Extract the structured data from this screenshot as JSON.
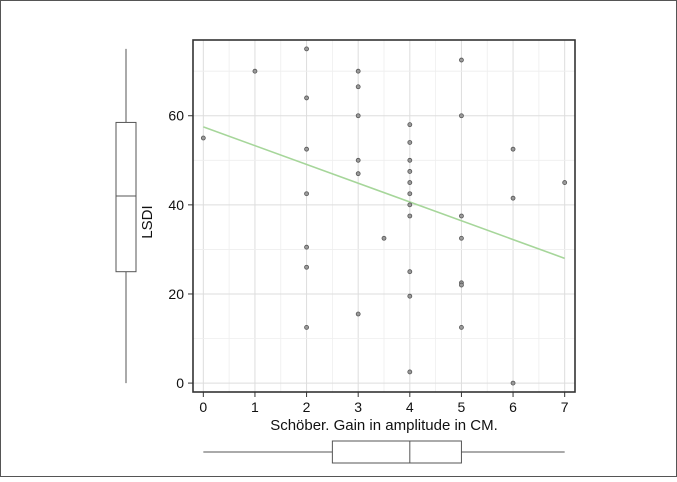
{
  "chart_data": {
    "type": "scatter",
    "xlabel": "Schöber. Gain in amplitude in CM.",
    "ylabel": "LSDI",
    "xlim": [
      -0.2,
      7.2
    ],
    "ylim": [
      -2,
      77
    ],
    "x_ticks": [
      "0",
      "1",
      "2",
      "3",
      "4",
      "5",
      "6",
      "7"
    ],
    "y_ticks": [
      "0",
      "20",
      "40",
      "60"
    ],
    "grid": true,
    "points": [
      {
        "x": 0,
        "y": 55
      },
      {
        "x": 1,
        "y": 70
      },
      {
        "x": 2,
        "y": 75
      },
      {
        "x": 2,
        "y": 64
      },
      {
        "x": 2,
        "y": 52.5
      },
      {
        "x": 2,
        "y": 42.5
      },
      {
        "x": 2,
        "y": 30.5
      },
      {
        "x": 2,
        "y": 26
      },
      {
        "x": 2,
        "y": 12.5
      },
      {
        "x": 3,
        "y": 70
      },
      {
        "x": 3,
        "y": 66.5
      },
      {
        "x": 3,
        "y": 60
      },
      {
        "x": 3,
        "y": 50
      },
      {
        "x": 3,
        "y": 47
      },
      {
        "x": 3,
        "y": 15.5
      },
      {
        "x": 3.5,
        "y": 32.5
      },
      {
        "x": 4,
        "y": 58
      },
      {
        "x": 4,
        "y": 54
      },
      {
        "x": 4,
        "y": 50
      },
      {
        "x": 4,
        "y": 47.5
      },
      {
        "x": 4,
        "y": 45
      },
      {
        "x": 4,
        "y": 42.5
      },
      {
        "x": 4,
        "y": 40
      },
      {
        "x": 4,
        "y": 37.5
      },
      {
        "x": 4,
        "y": 25
      },
      {
        "x": 4,
        "y": 19.5
      },
      {
        "x": 4,
        "y": 2.5
      },
      {
        "x": 5,
        "y": 72.5
      },
      {
        "x": 5,
        "y": 60
      },
      {
        "x": 5,
        "y": 37.5
      },
      {
        "x": 5,
        "y": 32.5
      },
      {
        "x": 5,
        "y": 22.5
      },
      {
        "x": 5,
        "y": 22
      },
      {
        "x": 5,
        "y": 12.5
      },
      {
        "x": 6,
        "y": 52.5
      },
      {
        "x": 6,
        "y": 41.5
      },
      {
        "x": 6,
        "y": 0
      },
      {
        "x": 7,
        "y": 45
      }
    ],
    "fit_line": {
      "x": [
        0,
        7
      ],
      "y": [
        57.5,
        28
      ],
      "color": "#a6d69a"
    },
    "x_boxplot": {
      "whisker_low": 0,
      "q1": 2.5,
      "median": 4,
      "q3": 5,
      "whisker_high": 7
    },
    "y_boxplot": {
      "whisker_low": 0,
      "q1": 25,
      "median": 42,
      "q3": 58.5,
      "whisker_high": 75
    },
    "colors": {
      "points": "#555555",
      "frame": "#333333",
      "grid": "#dddddd",
      "boxplot": "#555555"
    }
  }
}
